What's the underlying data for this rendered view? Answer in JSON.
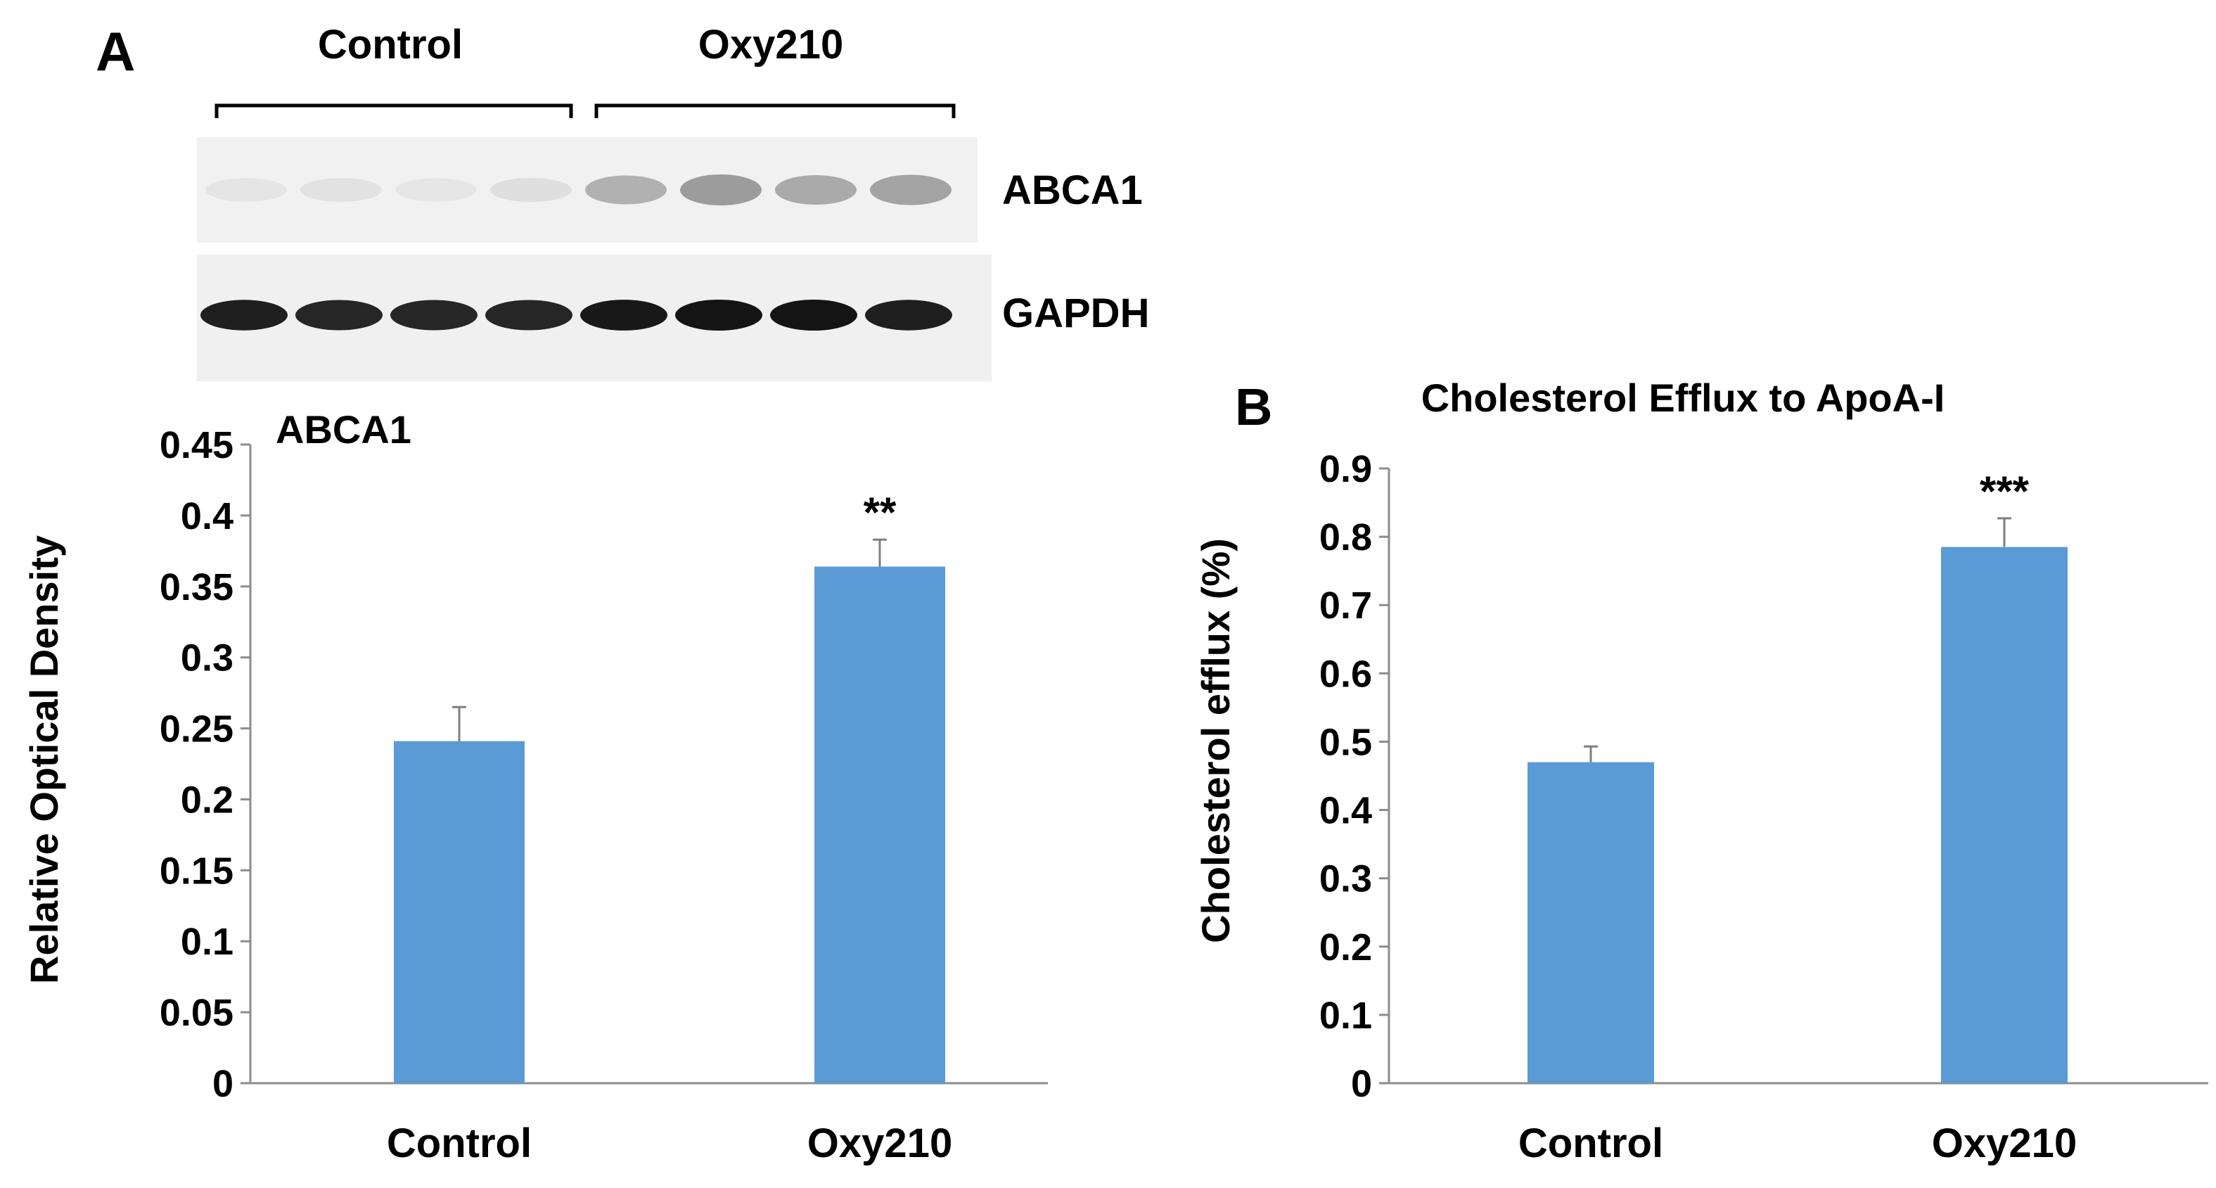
{
  "panel_a": {
    "label": "A",
    "blot": {
      "groups": [
        "Control",
        "Oxy210"
      ],
      "proteins": [
        "ABCA1",
        "GAPDH"
      ],
      "lanes_per_group": 4,
      "abca1_band_intensity": [
        0.08,
        0.1,
        0.07,
        0.12,
        0.45,
        0.6,
        0.5,
        0.55
      ],
      "gapdh_band_intensity": [
        0.95,
        0.92,
        0.92,
        0.92,
        0.98,
        1.0,
        1.0,
        0.95
      ]
    }
  },
  "panel_b": {
    "label": "B"
  },
  "chart_data": [
    {
      "type": "bar",
      "title": "ABCA1",
      "ylabel": "Relative Optical  Density",
      "xlabel": "",
      "categories": [
        "Control",
        "Oxy210"
      ],
      "values": [
        0.241,
        0.364
      ],
      "errors": [
        0.024,
        0.019
      ],
      "significance": [
        "",
        "**"
      ],
      "ylim": [
        0,
        0.45
      ],
      "yticks": [
        "0",
        "0.05",
        "0.1",
        "0.15",
        "0.2",
        "0.25",
        "0.3",
        "0.35",
        "0.4",
        "0.45"
      ],
      "grid": false,
      "bar_color": "#5b9bd5"
    },
    {
      "type": "bar",
      "title": "Cholesterol  Efflux to ApoA-I",
      "ylabel": "Cholesterol efflux (%)",
      "xlabel": "",
      "categories": [
        "Control",
        "Oxy210"
      ],
      "values": [
        0.47,
        0.785
      ],
      "errors": [
        0.023,
        0.042
      ],
      "significance": [
        "",
        "***"
      ],
      "ylim": [
        0,
        0.9
      ],
      "yticks": [
        "0",
        "0.1",
        "0.2",
        "0.3",
        "0.4",
        "0.5",
        "0.6",
        "0.7",
        "0.8",
        "0.9"
      ],
      "grid": false,
      "bar_color": "#5b9bd5"
    }
  ]
}
